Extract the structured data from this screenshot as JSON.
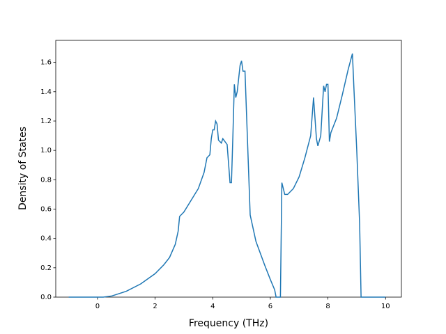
{
  "chart_data": {
    "type": "line",
    "x_label": "Frequency (THz)",
    "y_label": "Density of States",
    "x": [
      -1,
      0.2,
      0.5,
      1,
      1.5,
      2,
      2.3,
      2.5,
      2.7,
      2.8,
      2.85,
      3,
      3.5,
      3.7,
      3.8,
      3.9,
      3.95,
      4.0,
      4.05,
      4.1,
      4.15,
      4.2,
      4.3,
      4.35,
      4.5,
      4.6,
      4.65,
      4.7,
      4.75,
      4.8,
      4.85,
      4.95,
      5.0,
      5.05,
      5.12,
      5.3,
      5.5,
      5.8,
      6.0,
      6.15,
      6.2,
      6.35,
      6.4,
      6.5,
      6.6,
      6.8,
      7.0,
      7.2,
      7.4,
      7.5,
      7.6,
      7.65,
      7.75,
      7.85,
      7.9,
      7.95,
      8.0,
      8.05,
      8.1,
      8.3,
      8.5,
      8.7,
      8.85,
      8.9,
      9.0,
      9.1,
      9.15,
      10
    ],
    "series": [
      {
        "color": "#1f77b4",
        "values": [
          0,
          0,
          0.008,
          0.04,
          0.09,
          0.16,
          0.22,
          0.27,
          0.36,
          0.45,
          0.55,
          0.58,
          0.74,
          0.85,
          0.95,
          0.97,
          1.08,
          1.14,
          1.14,
          1.2,
          1.18,
          1.07,
          1.05,
          1.08,
          1.04,
          0.78,
          0.78,
          1.1,
          1.45,
          1.36,
          1.4,
          1.58,
          1.61,
          1.54,
          1.54,
          0.56,
          0.38,
          0.22,
          0.12,
          0.05,
          0,
          0,
          0.78,
          0.7,
          0.7,
          0.74,
          0.82,
          0.95,
          1.1,
          1.36,
          1.08,
          1.03,
          1.1,
          1.44,
          1.4,
          1.45,
          1.45,
          1.06,
          1.12,
          1.22,
          1.38,
          1.55,
          1.66,
          1.43,
          1.0,
          0.5,
          0,
          0
        ]
      }
    ],
    "xlim": [
      -1.45,
      10.55
    ],
    "ylim": [
      0,
      1.75
    ],
    "xticks": [
      0,
      2,
      4,
      6,
      8,
      10
    ],
    "yticks": [
      {
        "value": 0,
        "label": "0.0"
      },
      0.2,
      0.4,
      0.6,
      0.8,
      {
        "value": 1,
        "label": "1.0"
      },
      1.2,
      1.4,
      1.6
    ]
  }
}
